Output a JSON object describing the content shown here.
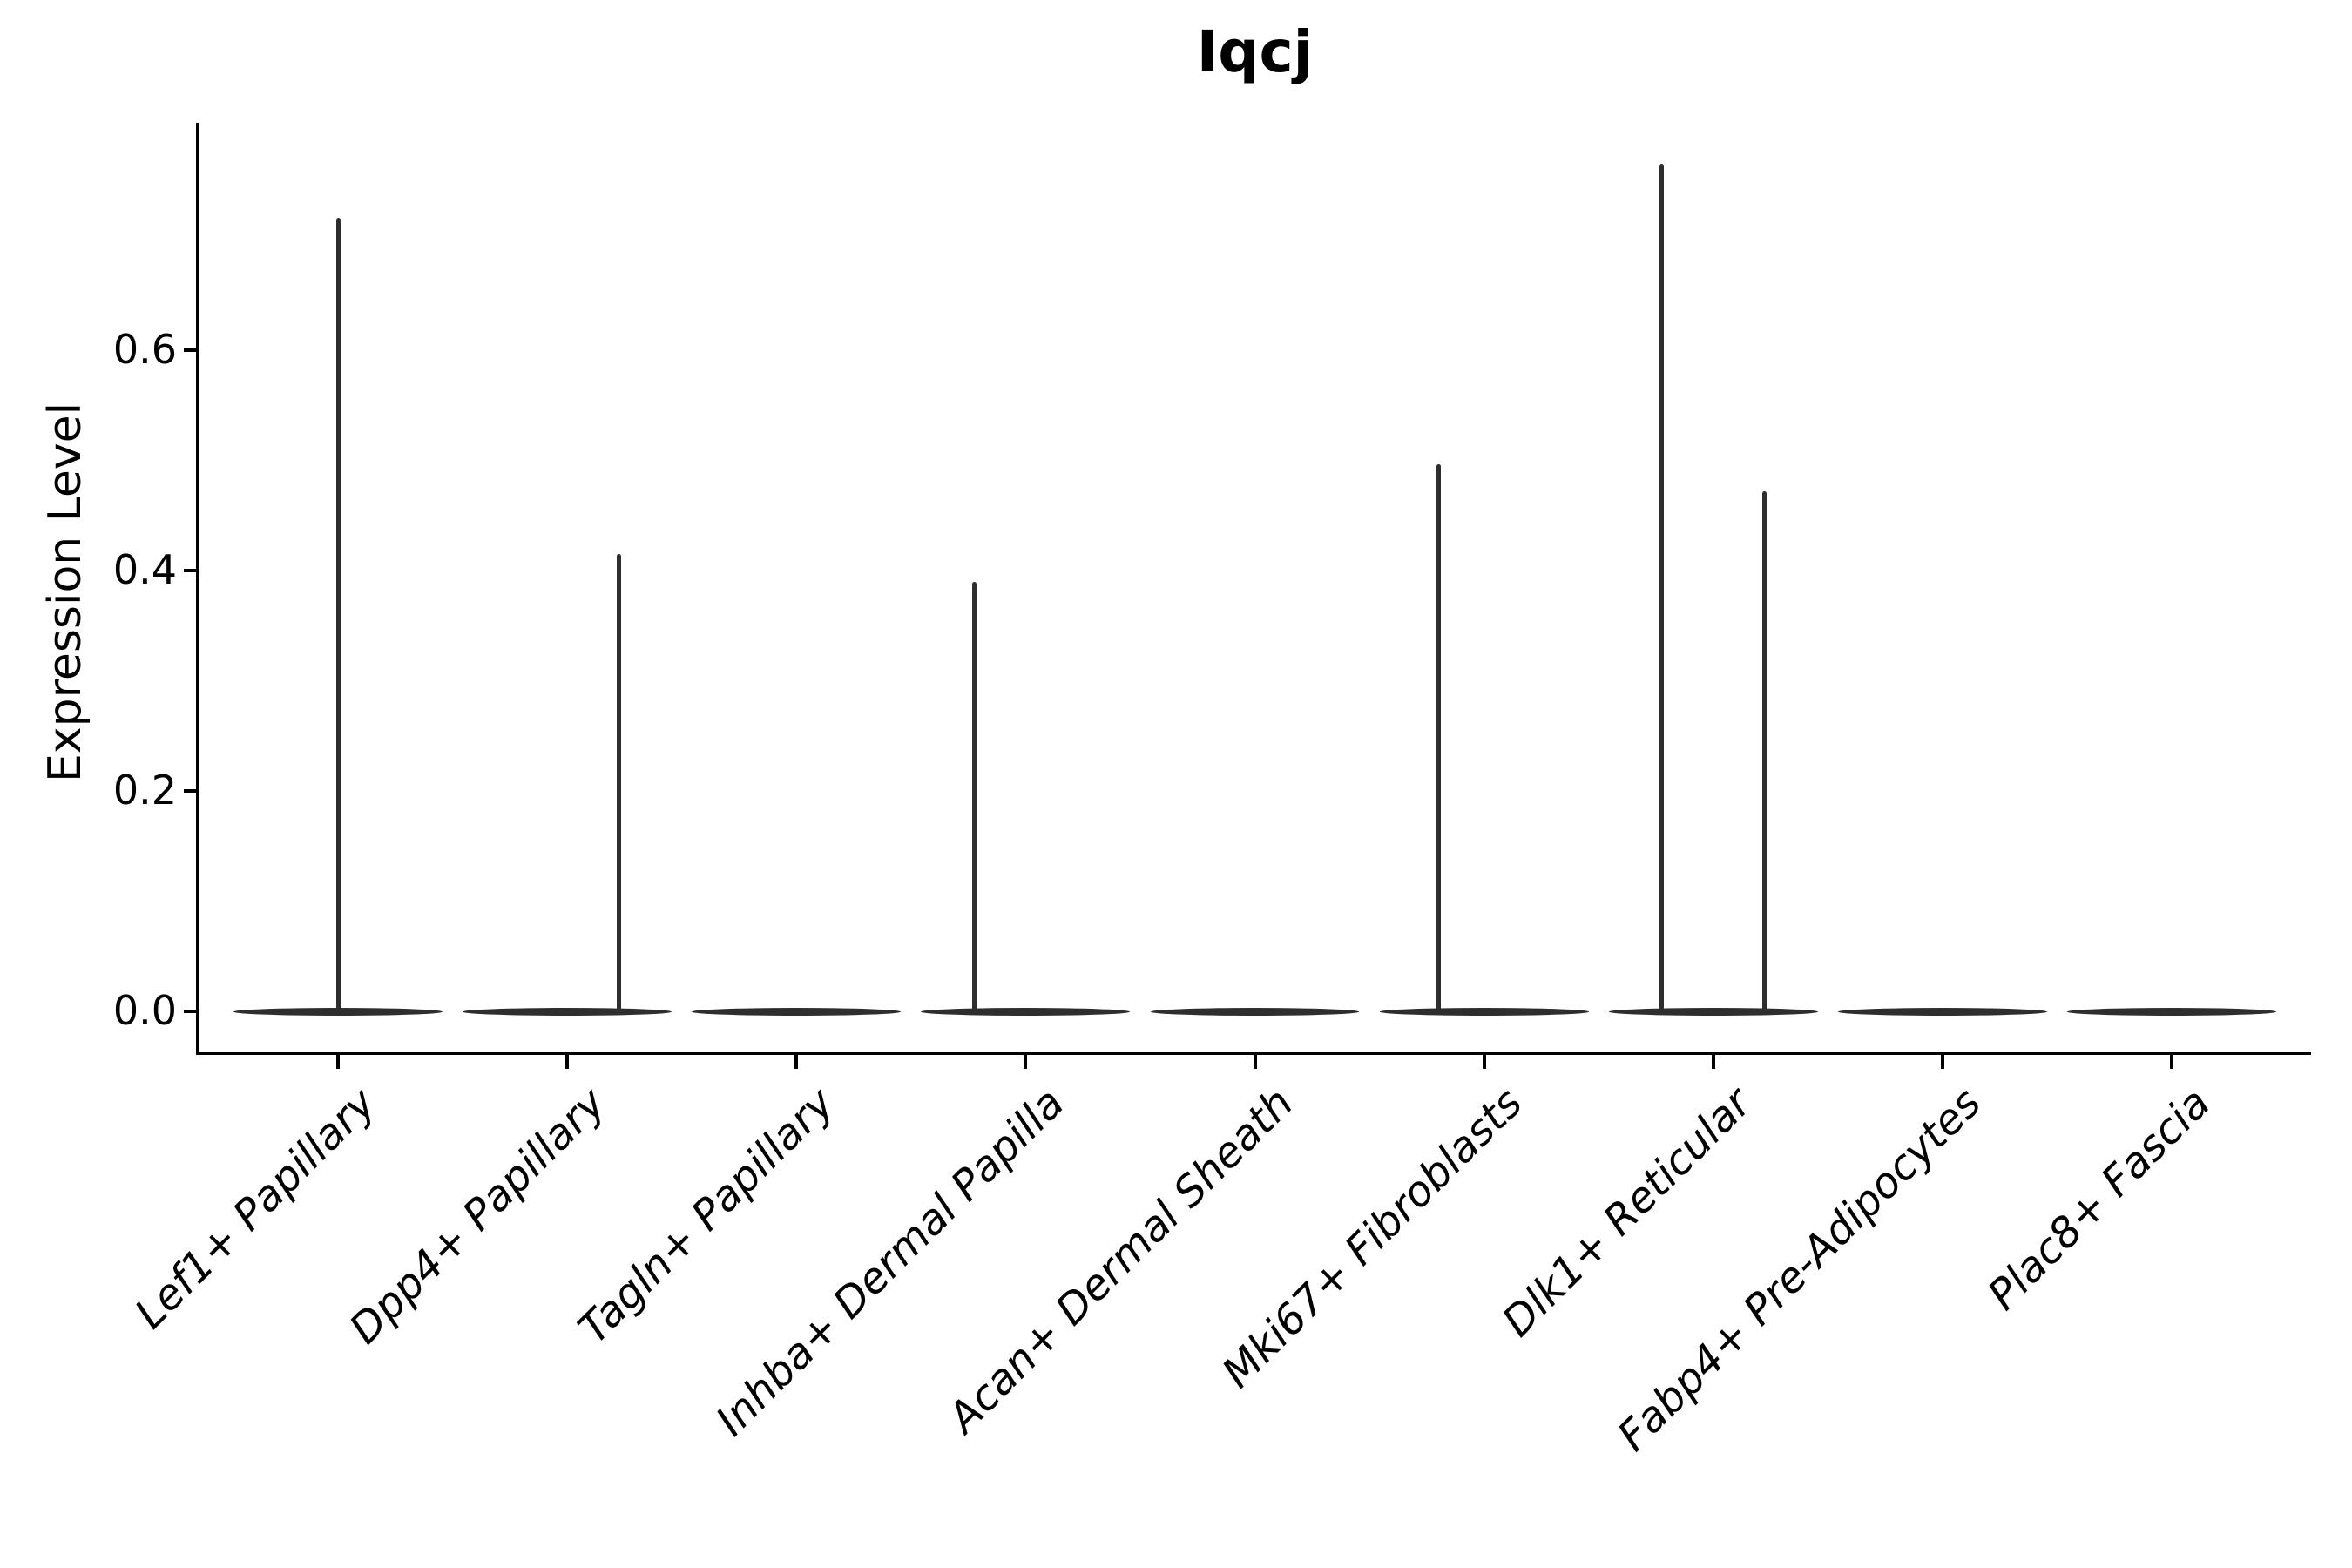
{
  "chart_data": {
    "type": "violin",
    "title": "Iqcj",
    "xlabel": "",
    "ylabel": "Expression Level",
    "categories": [
      "Lef1+ Papillary",
      "Dpp4+ Papillary",
      "Tagln+ Papillary",
      "Inhba+ Dermal Papilla",
      "Acan+ Dermal Sheath",
      "Mki67+ Fibroblasts",
      "Dlk1+ Reticular",
      "Fabp4+ Pre-Adipocytes",
      "Plac8+ Fascia"
    ],
    "y_ticks": [
      {
        "value": 0.0,
        "label": "0.0"
      },
      {
        "value": 0.2,
        "label": "0.2"
      },
      {
        "value": 0.4,
        "label": "0.4"
      },
      {
        "value": 0.6,
        "label": "0.6"
      }
    ],
    "ylim": [
      -0.037,
      0.806
    ],
    "grid": false,
    "legend": null,
    "x_tick_rotation_deg": 45,
    "x_tick_style": "italic",
    "violins": [
      {
        "category": "Lef1+ Papillary",
        "zero_body": true,
        "body_halfwidth_units": 0.456,
        "spikes": [
          {
            "offset_units": 0.0,
            "max": 0.72
          }
        ]
      },
      {
        "category": "Dpp4+ Papillary",
        "zero_body": true,
        "body_halfwidth_units": 0.456,
        "spikes": [
          {
            "offset_units": 0.225,
            "max": 0.415
          }
        ]
      },
      {
        "category": "Tagln+ Papillary",
        "zero_body": true,
        "body_halfwidth_units": 0.456,
        "spikes": []
      },
      {
        "category": "Inhba+ Dermal Papilla",
        "zero_body": true,
        "body_halfwidth_units": 0.456,
        "spikes": [
          {
            "offset_units": -0.225,
            "max": 0.39
          }
        ]
      },
      {
        "category": "Acan+ Dermal Sheath",
        "zero_body": true,
        "body_halfwidth_units": 0.456,
        "spikes": []
      },
      {
        "category": "Mki67+ Fibroblasts",
        "zero_body": true,
        "body_halfwidth_units": 0.456,
        "spikes": [
          {
            "offset_units": -0.2,
            "max": 0.496
          }
        ]
      },
      {
        "category": "Dlk1+ Reticular",
        "zero_body": true,
        "body_halfwidth_units": 0.456,
        "spikes": [
          {
            "offset_units": -0.225,
            "max": 0.769
          },
          {
            "offset_units": 0.225,
            "max": 0.472
          }
        ]
      },
      {
        "category": "Fabp4+ Pre-Adipocytes",
        "zero_body": true,
        "body_halfwidth_units": 0.456,
        "spikes": []
      },
      {
        "category": "Plac8+ Fascia",
        "zero_body": true,
        "body_halfwidth_units": 0.456,
        "spikes": []
      }
    ],
    "colors": {
      "violin": "#2e2e2e",
      "axis": "#000000",
      "text": "#000000",
      "background": "#ffffff"
    }
  }
}
